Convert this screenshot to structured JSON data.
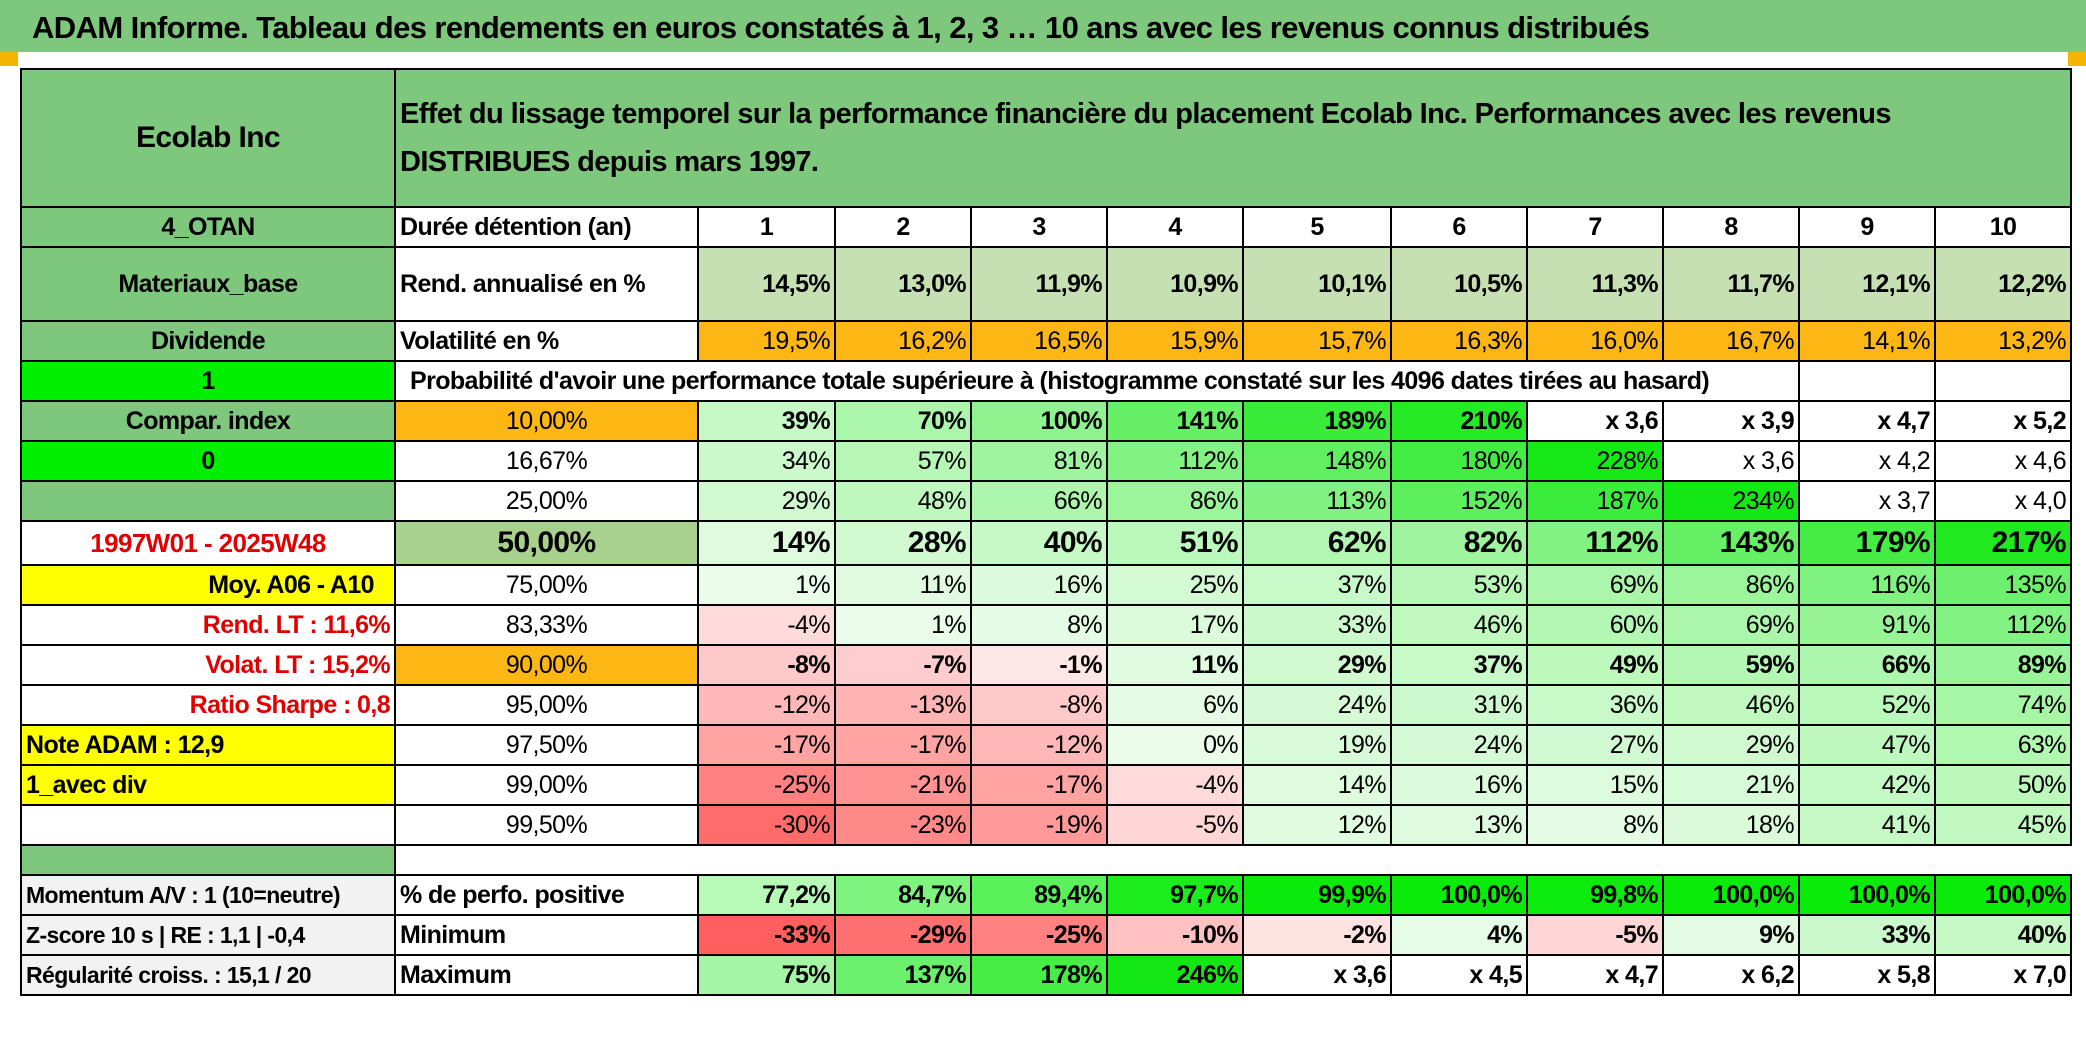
{
  "title": "ADAM Informe. Tableau des rendements en euros constatés à 1, 2, 3 … 10 ans avec les revenus connus distribués",
  "header": {
    "company": "Ecolab Inc",
    "description": "Effet du lissage temporel sur la performance financière du placement Ecolab Inc. Performances avec les revenus DISTRIBUES depuis mars 1997."
  },
  "left": {
    "otan": "4_OTAN",
    "sector": "Materiaux_base",
    "dividend": "Dividende",
    "one": "1",
    "compar": "Compar. index",
    "zero": "0",
    "period": "1997W01 - 2025W48",
    "moy": "Moy. A06 - A10",
    "rend_lt": "Rend. LT :   11,6%",
    "volat_lt": "Volat. LT :   15,2%",
    "sharpe": "Ratio Sharpe :   0,8",
    "note": "Note ADAM : 12,9",
    "avec_div": "1_avec div",
    "momentum": "Momentum A/V : 1 (10=neutre)",
    "zscore": "Z-score 10 s | RE : 1,1 | -0,4",
    "regularite": "Régularité croiss. : 15,1 / 20"
  },
  "rows": {
    "duree_label": "Durée détention (an)",
    "years": [
      "1",
      "2",
      "3",
      "4",
      "5",
      "6",
      "7",
      "8",
      "9",
      "10"
    ],
    "rend_label": "Rend. annualisé en %",
    "rend": [
      "14,5%",
      "13,0%",
      "11,9%",
      "10,9%",
      "10,1%",
      "10,5%",
      "11,3%",
      "11,7%",
      "12,1%",
      "12,2%"
    ],
    "vol_label": "Volatilité en %",
    "vol": [
      "19,5%",
      "16,2%",
      "16,5%",
      "15,9%",
      "15,7%",
      "16,3%",
      "16,0%",
      "16,7%",
      "14,1%",
      "13,2%"
    ],
    "proba_label": "Probabilité d'avoir une performance totale supérieure à (histogramme constaté sur les 4096 dates tirées au hasard)"
  },
  "proba": [
    {
      "p": "10,00%",
      "v": [
        "39%",
        "70%",
        "100%",
        "141%",
        "189%",
        "210%",
        "x 3,6",
        "x 3,9",
        "x 4,7",
        "x 5,2"
      ]
    },
    {
      "p": "16,67%",
      "v": [
        "34%",
        "57%",
        "81%",
        "112%",
        "148%",
        "180%",
        "228%",
        "x 3,6",
        "x 4,2",
        "x 4,6"
      ]
    },
    {
      "p": "25,00%",
      "v": [
        "29%",
        "48%",
        "66%",
        "86%",
        "113%",
        "152%",
        "187%",
        "234%",
        "x 3,7",
        "x 4,0"
      ]
    },
    {
      "p": "50,00%",
      "v": [
        "14%",
        "28%",
        "40%",
        "51%",
        "62%",
        "82%",
        "112%",
        "143%",
        "179%",
        "217%"
      ]
    },
    {
      "p": "75,00%",
      "v": [
        "1%",
        "11%",
        "16%",
        "25%",
        "37%",
        "53%",
        "69%",
        "86%",
        "116%",
        "135%"
      ]
    },
    {
      "p": "83,33%",
      "v": [
        "-4%",
        "1%",
        "8%",
        "17%",
        "33%",
        "46%",
        "60%",
        "69%",
        "91%",
        "112%"
      ]
    },
    {
      "p": "90,00%",
      "v": [
        "-8%",
        "-7%",
        "-1%",
        "11%",
        "29%",
        "37%",
        "49%",
        "59%",
        "66%",
        "89%"
      ]
    },
    {
      "p": "95,00%",
      "v": [
        "-12%",
        "-13%",
        "-8%",
        "6%",
        "24%",
        "31%",
        "36%",
        "46%",
        "52%",
        "74%"
      ]
    },
    {
      "p": "97,50%",
      "v": [
        "-17%",
        "-17%",
        "-12%",
        "0%",
        "19%",
        "24%",
        "27%",
        "29%",
        "47%",
        "63%"
      ]
    },
    {
      "p": "99,00%",
      "v": [
        "-25%",
        "-21%",
        "-17%",
        "-4%",
        "14%",
        "16%",
        "15%",
        "21%",
        "42%",
        "50%"
      ]
    },
    {
      "p": "99,50%",
      "v": [
        "-30%",
        "-23%",
        "-19%",
        "-5%",
        "12%",
        "13%",
        "8%",
        "18%",
        "41%",
        "45%"
      ]
    }
  ],
  "bottom": [
    {
      "label": "% de perfo. positive",
      "v": [
        "77,2%",
        "84,7%",
        "89,4%",
        "97,7%",
        "99,9%",
        "100,0%",
        "99,8%",
        "100,0%",
        "100,0%",
        "100,0%"
      ]
    },
    {
      "label": "Minimum",
      "v": [
        "-33%",
        "-29%",
        "-25%",
        "-10%",
        "-2%",
        "4%",
        "-5%",
        "9%",
        "33%",
        "40%"
      ]
    },
    {
      "label": "Maximum",
      "v": [
        "75%",
        "137%",
        "178%",
        "246%",
        "x 3,6",
        "x 4,5",
        "x 4,7",
        "x 6,2",
        "x 5,8",
        "x 7,0"
      ]
    }
  ],
  "colors": {
    "header_green": "#7ec87e",
    "orange": "#fdb714",
    "yellow": "#ffff00",
    "bright_green": "#00ee00",
    "label_red": "#e00000"
  }
}
